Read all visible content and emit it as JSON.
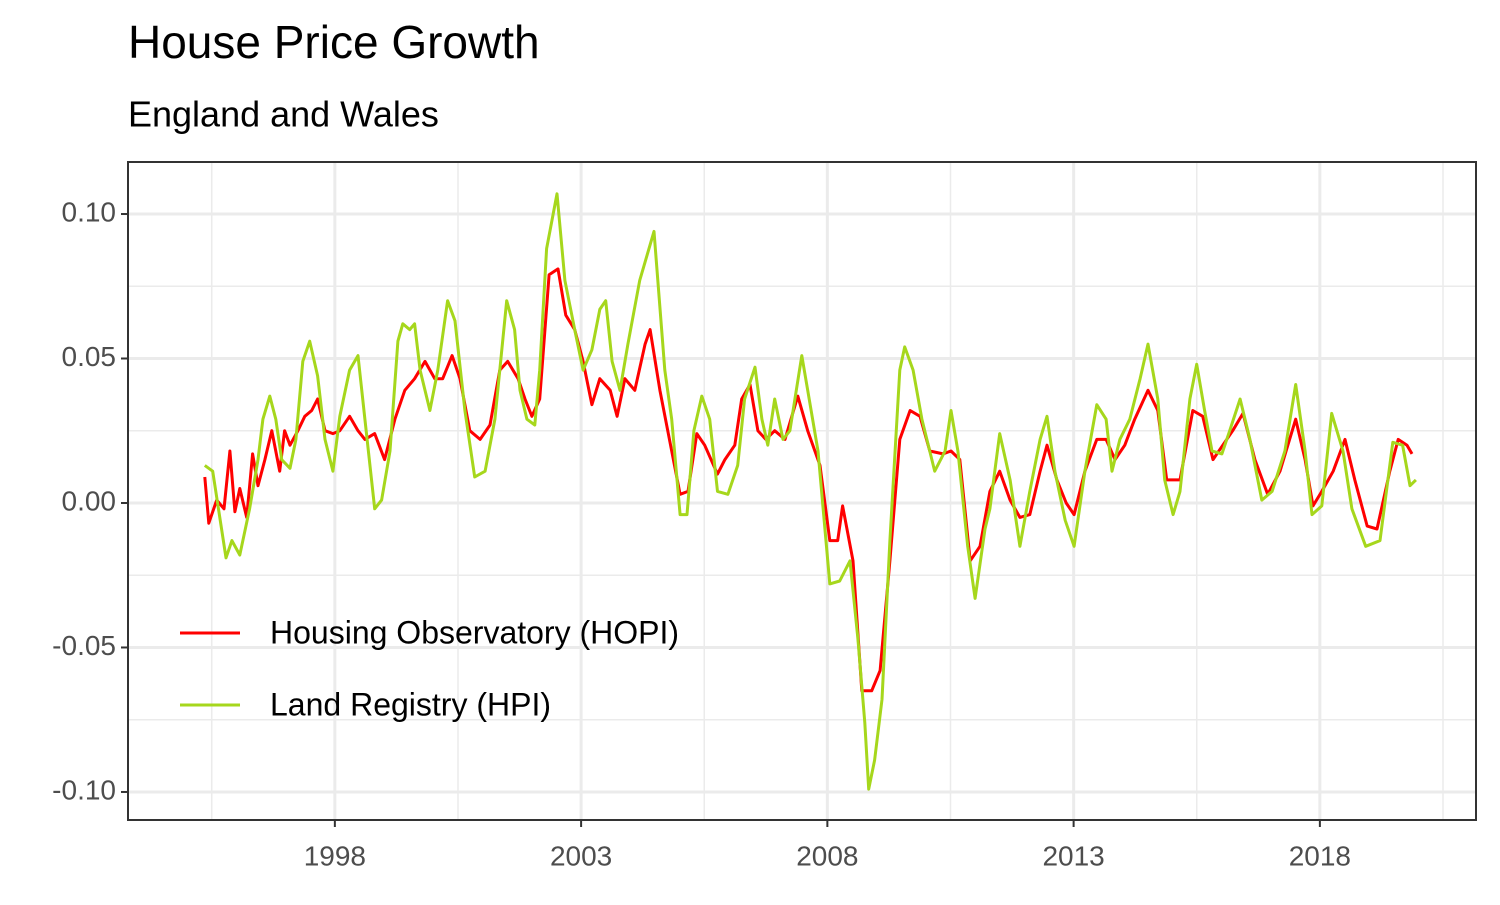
{
  "chart_data": {
    "type": "line",
    "title": "House Price Growth",
    "subtitle": "England and Wales",
    "xlim": [
      1993.8,
      2021.17
    ],
    "xticks": [
      1998,
      2003,
      2008,
      2013,
      2018
    ],
    "ylim": [
      -0.1097,
      0.118
    ],
    "yticks": [
      {
        "value": -0.1,
        "label": "-0.10"
      },
      -0.05,
      {
        "value": 0,
        "label": "0.00"
      },
      0.05,
      {
        "value": 0.1,
        "label": "0.10"
      }
    ],
    "grid": true,
    "legend": "bottom-left",
    "series": [
      {
        "name": "Housing Observatory (HOPI)",
        "color": "#ff0000",
        "x": [
          1995.36,
          1995.44,
          1995.6,
          1995.75,
          1995.87,
          1995.97,
          1996.07,
          1996.21,
          1996.33,
          1996.44,
          1996.58,
          1996.72,
          1996.88,
          1996.98,
          1997.09,
          1997.25,
          1997.39,
          1997.53,
          1997.65,
          1997.8,
          1997.96,
          1998.1,
          1998.3,
          1998.47,
          1998.61,
          1998.81,
          1999.01,
          1999.22,
          1999.42,
          1999.62,
          1999.83,
          2000.03,
          2000.19,
          2000.38,
          2000.54,
          2000.74,
          2000.95,
          2001.15,
          2001.35,
          2001.51,
          2001.72,
          2001.86,
          2002.0,
          2002.16,
          2002.35,
          2002.53,
          2002.69,
          2002.87,
          2003.04,
          2003.22,
          2003.38,
          2003.59,
          2003.73,
          2003.89,
          2004.09,
          2004.3,
          2004.4,
          2004.6,
          2004.84,
          2005.01,
          2005.17,
          2005.35,
          2005.51,
          2005.77,
          2005.92,
          2006.12,
          2006.26,
          2006.43,
          2006.59,
          2006.75,
          2006.93,
          2007.14,
          2007.4,
          2007.6,
          2007.85,
          2008.05,
          2008.21,
          2008.31,
          2008.52,
          2008.7,
          2008.9,
          2009.07,
          2009.27,
          2009.47,
          2009.68,
          2009.88,
          2010.08,
          2010.35,
          2010.51,
          2010.69,
          2010.9,
          2011.1,
          2011.3,
          2011.5,
          2011.71,
          2011.91,
          2012.11,
          2012.32,
          2012.46,
          2012.66,
          2012.85,
          2013.01,
          2013.23,
          2013.47,
          2013.66,
          2013.84,
          2014.04,
          2014.24,
          2014.51,
          2014.71,
          2014.89,
          2015.16,
          2015.42,
          2015.62,
          2015.83,
          2016.03,
          2016.23,
          2016.44,
          2016.68,
          2016.94,
          2017.19,
          2017.51,
          2017.7,
          2017.86,
          2018.04,
          2018.27,
          2018.51,
          2018.71,
          2018.96,
          2019.16,
          2019.42,
          2019.59,
          2019.77,
          2019.87
        ],
        "values": [
          0.009,
          -0.007,
          0.001,
          -0.002,
          0.018,
          -0.003,
          0.005,
          -0.005,
          0.017,
          0.006,
          0.015,
          0.025,
          0.011,
          0.025,
          0.02,
          0.025,
          0.03,
          0.032,
          0.036,
          0.025,
          0.024,
          0.025,
          0.03,
          0.025,
          0.022,
          0.024,
          0.015,
          0.029,
          0.039,
          0.043,
          0.049,
          0.043,
          0.043,
          0.051,
          0.043,
          0.025,
          0.022,
          0.027,
          0.046,
          0.049,
          0.043,
          0.036,
          0.03,
          0.036,
          0.079,
          0.081,
          0.065,
          0.06,
          0.049,
          0.034,
          0.043,
          0.039,
          0.03,
          0.043,
          0.039,
          0.055,
          0.06,
          0.039,
          0.018,
          0.003,
          0.004,
          0.024,
          0.02,
          0.01,
          0.015,
          0.02,
          0.036,
          0.041,
          0.025,
          0.022,
          0.025,
          0.022,
          0.037,
          0.025,
          0.013,
          -0.013,
          -0.013,
          -0.001,
          -0.02,
          -0.065,
          -0.065,
          -0.058,
          -0.02,
          0.022,
          0.032,
          0.03,
          0.018,
          0.017,
          0.018,
          0.015,
          -0.02,
          -0.015,
          0.004,
          0.011,
          0.001,
          -0.005,
          -0.004,
          0.011,
          0.02,
          0.008,
          0.0,
          -0.004,
          0.011,
          0.022,
          0.022,
          0.015,
          0.02,
          0.029,
          0.039,
          0.032,
          0.008,
          0.008,
          0.032,
          0.03,
          0.015,
          0.02,
          0.025,
          0.031,
          0.015,
          0.003,
          0.011,
          0.029,
          0.015,
          -0.001,
          0.004,
          0.011,
          0.022,
          0.008,
          -0.008,
          -0.009,
          0.011,
          0.022,
          0.02,
          0.017
        ]
      },
      {
        "name": "Land Registry (HPI)",
        "color": "#a6d71c",
        "x": [
          1995.36,
          1995.52,
          1995.79,
          1995.91,
          1996.07,
          1996.27,
          1996.44,
          1996.54,
          1996.68,
          1996.8,
          1996.92,
          1997.09,
          1997.21,
          1997.35,
          1997.49,
          1997.65,
          1997.8,
          1997.96,
          1998.1,
          1998.3,
          1998.47,
          1998.61,
          1998.81,
          1998.95,
          1999.12,
          1999.28,
          1999.38,
          1999.52,
          1999.62,
          1999.73,
          1999.93,
          2000.09,
          2000.29,
          2000.44,
          2000.64,
          2000.84,
          2001.05,
          2001.25,
          2001.49,
          2001.65,
          2001.76,
          2001.9,
          2002.06,
          2002.16,
          2002.3,
          2002.51,
          2002.67,
          2002.87,
          2003.04,
          2003.22,
          2003.38,
          2003.5,
          2003.63,
          2003.79,
          2003.95,
          2004.19,
          2004.48,
          2004.7,
          2004.84,
          2005.01,
          2005.15,
          2005.29,
          2005.45,
          2005.61,
          2005.77,
          2005.98,
          2006.18,
          2006.32,
          2006.53,
          2006.67,
          2006.79,
          2006.93,
          2007.1,
          2007.24,
          2007.48,
          2007.6,
          2007.81,
          2008.05,
          2008.25,
          2008.46,
          2008.62,
          2008.76,
          2008.84,
          2008.96,
          2009.11,
          2009.27,
          2009.47,
          2009.57,
          2009.74,
          2009.92,
          2010.18,
          2010.39,
          2010.51,
          2010.65,
          2010.85,
          2011.0,
          2011.2,
          2011.3,
          2011.5,
          2011.71,
          2011.91,
          2012.11,
          2012.32,
          2012.46,
          2012.62,
          2012.83,
          2013.01,
          2013.23,
          2013.47,
          2013.66,
          2013.78,
          2013.94,
          2014.14,
          2014.35,
          2014.51,
          2014.71,
          2014.85,
          2015.02,
          2015.16,
          2015.36,
          2015.5,
          2015.66,
          2015.81,
          2016.01,
          2016.17,
          2016.38,
          2016.58,
          2016.82,
          2017.03,
          2017.29,
          2017.51,
          2017.7,
          2017.84,
          2018.04,
          2018.24,
          2018.47,
          2018.65,
          2018.93,
          2019.22,
          2019.48,
          2019.68,
          2019.83,
          2019.95
        ],
        "values": [
          0.013,
          0.011,
          -0.019,
          -0.013,
          -0.018,
          -0.002,
          0.015,
          0.029,
          0.037,
          0.029,
          0.015,
          0.012,
          0.022,
          0.049,
          0.056,
          0.044,
          0.022,
          0.011,
          0.03,
          0.046,
          0.051,
          0.029,
          -0.002,
          0.001,
          0.018,
          0.056,
          0.062,
          0.06,
          0.062,
          0.046,
          0.032,
          0.046,
          0.07,
          0.063,
          0.032,
          0.009,
          0.011,
          0.029,
          0.07,
          0.06,
          0.039,
          0.029,
          0.027,
          0.046,
          0.088,
          0.107,
          0.077,
          0.06,
          0.046,
          0.053,
          0.067,
          0.07,
          0.049,
          0.039,
          0.055,
          0.077,
          0.094,
          0.046,
          0.029,
          -0.004,
          -0.004,
          0.025,
          0.037,
          0.029,
          0.004,
          0.003,
          0.013,
          0.036,
          0.047,
          0.029,
          0.02,
          0.036,
          0.022,
          0.025,
          0.051,
          0.039,
          0.018,
          -0.028,
          -0.027,
          -0.02,
          -0.047,
          -0.076,
          -0.099,
          -0.089,
          -0.068,
          -0.013,
          0.046,
          0.054,
          0.046,
          0.029,
          0.011,
          0.018,
          0.032,
          0.018,
          -0.015,
          -0.033,
          -0.009,
          -0.002,
          0.024,
          0.008,
          -0.015,
          0.004,
          0.022,
          0.03,
          0.011,
          -0.006,
          -0.015,
          0.011,
          0.034,
          0.029,
          0.011,
          0.022,
          0.029,
          0.043,
          0.055,
          0.036,
          0.008,
          -0.004,
          0.004,
          0.036,
          0.048,
          0.032,
          0.018,
          0.017,
          0.025,
          0.036,
          0.022,
          0.001,
          0.004,
          0.018,
          0.041,
          0.018,
          -0.004,
          -0.001,
          0.031,
          0.018,
          -0.002,
          -0.015,
          -0.013,
          0.021,
          0.02,
          0.006,
          0.008
        ]
      }
    ]
  }
}
